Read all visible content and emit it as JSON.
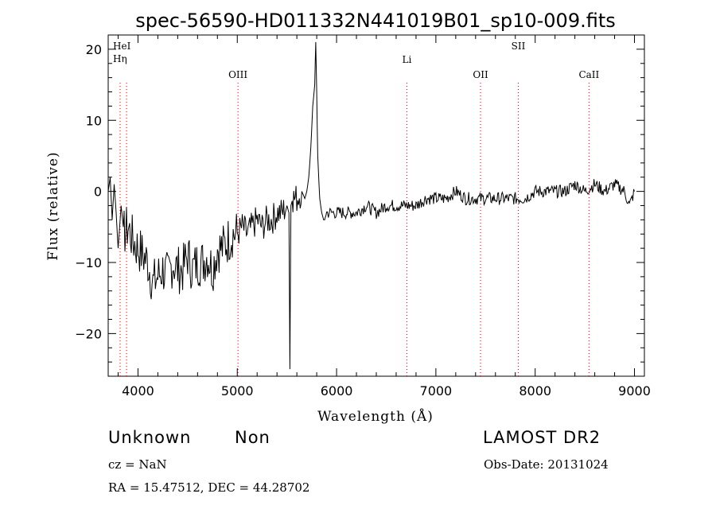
{
  "chart_data": {
    "type": "line",
    "title": "spec-56590-HD011332N441019B01_sp10-009.fits",
    "xlabel": "Wavelength (Å)",
    "ylabel": "Flux (relative)",
    "xlim": [
      3700,
      9100
    ],
    "ylim": [
      -26,
      22
    ],
    "x_ticks": [
      4000,
      5000,
      6000,
      7000,
      8000,
      9000
    ],
    "y_ticks": [
      -20,
      -10,
      0,
      10,
      20
    ],
    "grid": false,
    "series": [
      {
        "x": [
          3700,
          3720,
          3740,
          3760,
          3780,
          3800,
          3830,
          3860,
          3900,
          3950,
          4000,
          4050,
          4100,
          4150,
          4200,
          4250,
          4300,
          4350,
          4400,
          4450,
          4500,
          4550,
          4600,
          4650,
          4700,
          4750,
          4800,
          4850,
          4900,
          4950,
          5000,
          5050,
          5100,
          5150,
          5200,
          5250,
          5300,
          5350,
          5400,
          5450,
          5500,
          5520,
          5530,
          5540,
          5560,
          5600,
          5650,
          5680,
          5700,
          5720,
          5740,
          5760,
          5780,
          5790,
          5800,
          5810,
          5830,
          5850,
          5870,
          5880,
          5900,
          5950,
          6000,
          6100,
          6200,
          6300,
          6400,
          6500,
          6600,
          6700,
          6800,
          6900,
          7000,
          7100,
          7200,
          7300,
          7400,
          7500,
          7600,
          7700,
          7800,
          7900,
          8000,
          8100,
          8200,
          8300,
          8400,
          8500,
          8600,
          8700,
          8800,
          8900,
          8950,
          9000
        ],
        "y": [
          0,
          2,
          -4,
          1,
          -3,
          -8,
          -2,
          -6,
          -5,
          -7,
          -8,
          -9,
          -10,
          -13,
          -12,
          -11,
          -12,
          -10,
          -11,
          -11,
          -9,
          -11,
          -10,
          -10,
          -9,
          -11,
          -8,
          -8,
          -7,
          -6,
          -6,
          -5,
          -6,
          -5,
          -4,
          -5,
          -4,
          -4,
          -3,
          -3,
          -2,
          -3,
          -25,
          -2,
          -1,
          -1,
          0,
          -1,
          0,
          2,
          6,
          12,
          15,
          21,
          14,
          5,
          -1,
          -3,
          -4,
          -4,
          -3,
          -3,
          -3,
          -3,
          -3,
          -2,
          -3,
          -2,
          -2,
          -2,
          -2,
          -1,
          -1,
          -1,
          0,
          -1,
          -1,
          -1,
          -1,
          -1,
          -1,
          -1,
          0,
          0,
          0,
          0,
          1,
          0,
          1,
          0,
          1,
          0,
          -2,
          0
        ]
      }
    ],
    "lines": [
      {
        "label": "HeI",
        "x": 3820
      },
      {
        "label": "Hη",
        "x": 3885
      },
      {
        "label": "OIII",
        "x": 5007
      },
      {
        "label": "Li",
        "x": 6708
      },
      {
        "label": "OII",
        "x": 7450
      },
      {
        "label": "SII",
        "x": 7830
      },
      {
        "label": "CaII",
        "x": 8542
      }
    ],
    "line_color": "#cc0000"
  },
  "info": {
    "class": "Unknown",
    "subclass": "Non",
    "survey": "LAMOST DR2",
    "cz": "cz = NaN",
    "obs_date": "Obs-Date: 20131024",
    "radec": "RA =  15.47512, DEC =  44.28702"
  }
}
